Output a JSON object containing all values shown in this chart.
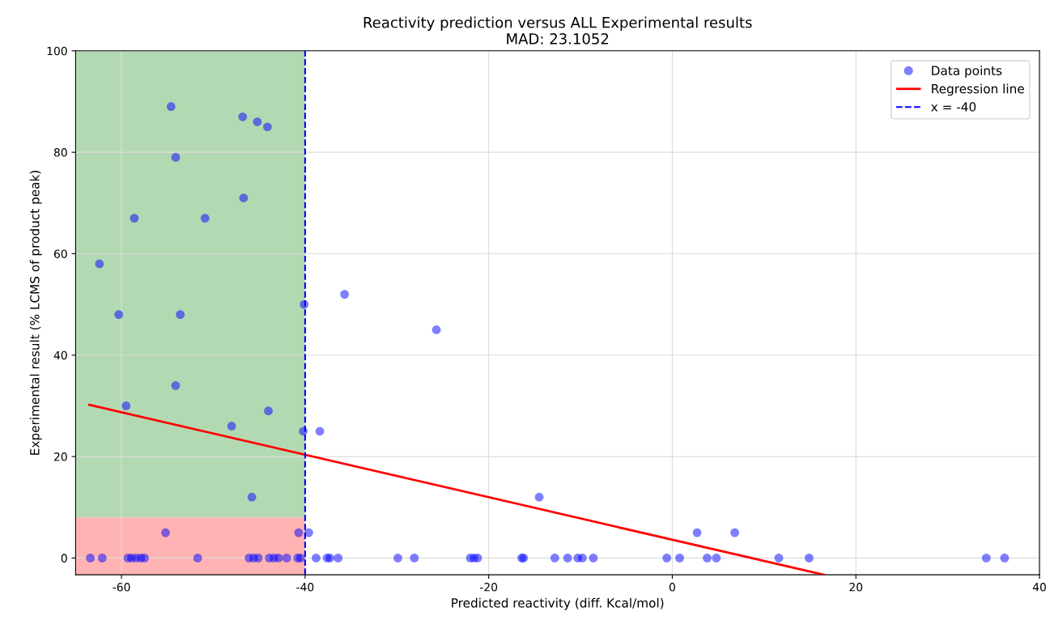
{
  "chart_data": {
    "type": "scatter",
    "title": "Reactivity prediction versus ALL Experimental results\nMAD: 23.1052",
    "xlabel": "Predicted reactivity (diff. Kcal/mol)",
    "ylabel": "Experimental result (% LCMS of product peak)",
    "xlim": [
      -65,
      40
    ],
    "xticks": [
      -60,
      -40,
      -20,
      0,
      20,
      40
    ],
    "ylim": [
      -3.3,
      100
    ],
    "yticks": [
      0,
      20,
      40,
      60,
      80,
      100
    ],
    "grid": true,
    "legend": "top right",
    "series": [
      {
        "name": "Data points",
        "marker": "circle",
        "color": "#0000ff",
        "x": [
          -54.6,
          -46.8,
          -45.2,
          -44.1,
          -54.1,
          -46.7,
          -58.6,
          -50.9,
          -62.4,
          -60.3,
          -53.6,
          -40.1,
          -35.7,
          -25.7,
          -54.1,
          -59.5,
          -44.0,
          -48.0,
          -40.2,
          -38.4,
          -45.8,
          -14.5,
          -55.2,
          -40.7,
          -39.6,
          2.7,
          6.8,
          -63.4,
          -62.1,
          -59.3,
          -58.9,
          -58.4,
          -57.9,
          -57.5,
          -51.7,
          -46.1,
          -45.6,
          -45.1,
          -43.9,
          -43.4,
          -42.9,
          -42.0,
          -40.8,
          -40.5,
          -38.8,
          -37.6,
          -37.3,
          -36.4,
          -29.9,
          -28.1,
          -22.0,
          -21.6,
          -21.2,
          -16.4,
          -16.2,
          -12.8,
          -11.4,
          -10.3,
          -9.8,
          -8.6,
          -0.6,
          0.8,
          3.8,
          4.8,
          11.6,
          14.9,
          34.2,
          36.2
        ],
        "values": [
          89,
          87,
          86,
          85,
          79,
          71,
          67,
          67,
          58,
          48,
          48,
          50,
          52,
          45,
          34,
          30,
          29,
          26,
          25,
          25,
          12,
          12,
          5,
          5,
          5,
          5,
          5,
          0,
          0,
          0,
          0,
          0,
          0,
          0,
          0,
          0,
          0,
          0,
          0,
          0,
          0,
          0,
          0,
          0,
          0,
          0,
          0,
          0,
          0,
          0,
          0,
          0,
          0,
          0,
          0,
          0,
          0,
          0,
          0,
          0,
          0,
          0,
          0,
          0,
          0,
          0,
          0,
          0
        ]
      },
      {
        "name": "Regression line",
        "type": "line",
        "color": "#ff0000",
        "line_style": "solid",
        "marker": "none",
        "x": [
          -63.5,
          16.5
        ],
        "values": [
          30.2,
          -3.3
        ]
      },
      {
        "name": "x = -40",
        "type": "line",
        "color": "#0000ff",
        "line_style": "dashed",
        "marker": "none",
        "x": [
          -40,
          -40
        ],
        "values": [
          -3.3,
          100
        ]
      }
    ],
    "bands": [
      {
        "axis": "y",
        "from": 8,
        "to": 100,
        "color": "#b3d9b3"
      },
      {
        "axis": "y",
        "from": -3.3,
        "to": 8,
        "color": "#ffb3b3"
      }
    ]
  }
}
